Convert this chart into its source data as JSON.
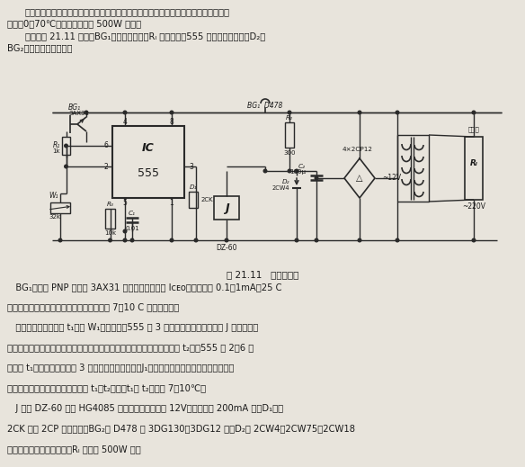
{
  "bg_color": "#e8e4dc",
  "text_color": "#1a1a1a",
  "fig_width": 5.84,
  "fig_height": 5.19,
  "dpi": 100,
  "top_para1": "该恒温控制器适用于室内恒温控制，可用于温室培育植物和低温加热炉恒温。适用温度",
  "top_para2": "范围约0～70℃。加热器功率在 500W 以内。",
  "top_para3": "电路如图 21.11 所示。BG₁是热敏传感器，Rₗ 是加热器，555 构成滞后比较器，D₂与",
  "top_para4": "BG₂组成简单稳压电路。",
  "caption": "图 21.11   恒温控制器",
  "bot_para1": "   BG₁是用锡 PNP 晶体管 3AX31 作为温度探头，其 Iᴄᴇᴏ在常温下为 0.1～1mA（25 C",
  "bot_para2": "时），随温度升高而增大，温度大约每升高 7～10 C 就增大一倍。",
  "bot_para3": "   当温度升高到设定値 t₁（用 W₁设定）时，555 第 3 脚翻转成低电平，继电器 J 释放，常开",
  "bot_para4": "接点切断加热电源，停止加热。此后温度将会下降，当温度下降到下限値 t₂时，555 第 2，6 脚",
  "bot_para5": "电压为 t₁对应的一半値，第 3 脚输出翻转成高电平，J₁吸动，接点闭合接通加热电源，于是",
  "bot_para6": "加热升温。这样，温度就被控制在 t₁～t₂之间。t₁与 t₂相差约 7～10℃。",
  "bot_para7": "   J 可用 DZ-60 型或 HG4085 型继电器，工作电压 12V，电流要在 200mA 内。D₁可用",
  "bot_para8": "2CK 型或 2CP 型二极管。BG₂用 D478 或 3DG130、3DG12 等。D₂用 2CW4、2CW75、2CW18",
  "bot_para9": "等。其余元件无特殊要求。Rₗ 功率在 500W 内。"
}
